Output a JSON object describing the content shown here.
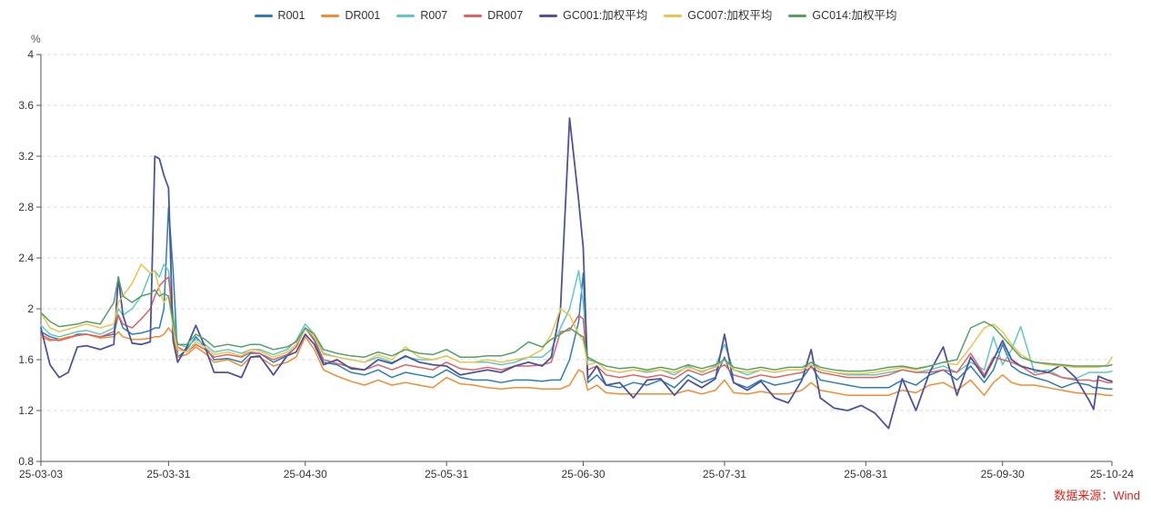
{
  "chart": {
    "unit": "%",
    "source_note": "数据来源：Wind",
    "colors": {
      "source_note": "#d9261c",
      "axis": "#555555",
      "grid": "#dcdcdc",
      "tick_label": "#333333"
    }
  },
  "chart_data": {
    "type": "line",
    "title": "",
    "xlabel": "",
    "ylabel": "%",
    "ylim": [
      0.8,
      4.0
    ],
    "y_ticks": [
      0.8,
      1.2,
      1.6,
      2.0,
      2.4,
      2.8,
      3.2,
      3.6,
      4.0
    ],
    "y_tick_labels": [
      "0.8",
      "1.2",
      "1.6",
      "2",
      "2.4",
      "2.8",
      "3.2",
      "3.6",
      "4"
    ],
    "grid": "dashed-horizontal",
    "legend_position": "top-center",
    "x_unit": "days-since-2025-03-03",
    "x_range_days": 235,
    "x_ticks": [
      {
        "day": 0,
        "label": "25-03-03"
      },
      {
        "day": 28,
        "label": "25-03-31"
      },
      {
        "day": 58,
        "label": "25-04-30"
      },
      {
        "day": 89,
        "label": "25-05-31"
      },
      {
        "day": 119,
        "label": "25-06-30"
      },
      {
        "day": 150,
        "label": "25-07-31"
      },
      {
        "day": 181,
        "label": "25-08-31"
      },
      {
        "day": 211,
        "label": "25-09-30"
      },
      {
        "day": 235,
        "label": "25-10-24"
      }
    ],
    "days": [
      0,
      2,
      4,
      6,
      8,
      10,
      13,
      16,
      17,
      18,
      20,
      22,
      24,
      25,
      26,
      27,
      28,
      29,
      30,
      32,
      34,
      36,
      38,
      41,
      44,
      46,
      48,
      51,
      54,
      56,
      58,
      60,
      62,
      65,
      68,
      71,
      74,
      77,
      80,
      83,
      86,
      89,
      92,
      95,
      98,
      101,
      104,
      107,
      110,
      112,
      114,
      116,
      118,
      119,
      120,
      122,
      124,
      127,
      130,
      133,
      136,
      139,
      142,
      145,
      148,
      150,
      152,
      155,
      158,
      161,
      164,
      167,
      169,
      171,
      174,
      177,
      180,
      183,
      186,
      189,
      192,
      195,
      198,
      201,
      204,
      207,
      209,
      211,
      213,
      215,
      218,
      221,
      224,
      227,
      230,
      231,
      232,
      234,
      235
    ],
    "series": [
      {
        "name": "R001",
        "color": "#2a7db5",
        "width": 1.5,
        "values": [
          1.82,
          1.78,
          1.76,
          1.77,
          1.8,
          1.8,
          1.78,
          1.8,
          1.95,
          1.85,
          1.8,
          1.81,
          1.83,
          1.85,
          1.85,
          2.0,
          2.8,
          2.3,
          1.62,
          1.68,
          1.78,
          1.7,
          1.6,
          1.61,
          1.58,
          1.65,
          1.65,
          1.58,
          1.63,
          1.7,
          1.85,
          1.75,
          1.58,
          1.56,
          1.5,
          1.48,
          1.52,
          1.46,
          1.5,
          1.48,
          1.46,
          1.52,
          1.46,
          1.44,
          1.44,
          1.42,
          1.44,
          1.44,
          1.43,
          1.44,
          1.44,
          1.6,
          1.9,
          2.28,
          1.42,
          1.48,
          1.4,
          1.38,
          1.42,
          1.4,
          1.44,
          1.38,
          1.48,
          1.42,
          1.46,
          1.62,
          1.42,
          1.38,
          1.44,
          1.4,
          1.42,
          1.45,
          1.55,
          1.44,
          1.42,
          1.4,
          1.38,
          1.38,
          1.38,
          1.44,
          1.4,
          1.48,
          1.52,
          1.44,
          1.55,
          1.42,
          1.52,
          1.72,
          1.55,
          1.5,
          1.46,
          1.43,
          1.38,
          1.42,
          1.4,
          1.38,
          1.38,
          1.37,
          1.37
        ]
      },
      {
        "name": "DR001",
        "color": "#f58b2e",
        "width": 1.5,
        "values": [
          1.78,
          1.75,
          1.76,
          1.78,
          1.79,
          1.8,
          1.77,
          1.78,
          1.82,
          1.78,
          1.76,
          1.76,
          1.77,
          1.78,
          1.78,
          1.8,
          1.85,
          1.8,
          1.62,
          1.64,
          1.7,
          1.65,
          1.58,
          1.6,
          1.55,
          1.62,
          1.62,
          1.55,
          1.58,
          1.62,
          1.78,
          1.68,
          1.52,
          1.47,
          1.43,
          1.4,
          1.44,
          1.4,
          1.42,
          1.4,
          1.38,
          1.46,
          1.41,
          1.4,
          1.38,
          1.37,
          1.38,
          1.38,
          1.37,
          1.37,
          1.37,
          1.4,
          1.52,
          1.5,
          1.36,
          1.4,
          1.34,
          1.33,
          1.33,
          1.33,
          1.33,
          1.33,
          1.36,
          1.33,
          1.36,
          1.44,
          1.34,
          1.33,
          1.35,
          1.33,
          1.33,
          1.36,
          1.42,
          1.36,
          1.34,
          1.32,
          1.32,
          1.32,
          1.32,
          1.36,
          1.34,
          1.4,
          1.42,
          1.36,
          1.44,
          1.32,
          1.42,
          1.48,
          1.42,
          1.4,
          1.4,
          1.38,
          1.36,
          1.34,
          1.33,
          1.33,
          1.33,
          1.32,
          1.32
        ]
      },
      {
        "name": "R007",
        "color": "#5fc8c3",
        "width": 1.5,
        "values": [
          1.87,
          1.8,
          1.78,
          1.8,
          1.82,
          1.83,
          1.8,
          1.85,
          2.0,
          1.95,
          2.0,
          2.1,
          2.28,
          2.3,
          2.25,
          2.35,
          2.3,
          1.95,
          1.72,
          1.7,
          1.76,
          1.72,
          1.66,
          1.68,
          1.65,
          1.68,
          1.68,
          1.64,
          1.68,
          1.75,
          1.88,
          1.8,
          1.65,
          1.62,
          1.6,
          1.58,
          1.62,
          1.58,
          1.62,
          1.6,
          1.6,
          1.63,
          1.58,
          1.58,
          1.58,
          1.56,
          1.58,
          1.62,
          1.62,
          1.68,
          1.85,
          2.0,
          2.3,
          2.05,
          1.6,
          1.58,
          1.52,
          1.5,
          1.52,
          1.5,
          1.52,
          1.48,
          1.55,
          1.5,
          1.55,
          1.72,
          1.52,
          1.48,
          1.52,
          1.5,
          1.52,
          1.52,
          1.58,
          1.52,
          1.5,
          1.48,
          1.48,
          1.48,
          1.5,
          1.52,
          1.5,
          1.52,
          1.55,
          1.5,
          1.58,
          1.52,
          1.78,
          1.56,
          1.68,
          1.86,
          1.5,
          1.52,
          1.46,
          1.45,
          1.5,
          1.5,
          1.5,
          1.5,
          1.51
        ]
      },
      {
        "name": "DR007",
        "color": "#e06160",
        "width": 1.5,
        "values": [
          1.8,
          1.76,
          1.75,
          1.77,
          1.79,
          1.8,
          1.78,
          1.82,
          1.95,
          1.88,
          1.85,
          1.92,
          2.0,
          2.1,
          2.18,
          2.22,
          2.25,
          1.9,
          1.7,
          1.66,
          1.72,
          1.68,
          1.62,
          1.64,
          1.62,
          1.66,
          1.65,
          1.6,
          1.64,
          1.7,
          1.85,
          1.76,
          1.6,
          1.57,
          1.54,
          1.52,
          1.56,
          1.52,
          1.56,
          1.54,
          1.52,
          1.58,
          1.53,
          1.52,
          1.54,
          1.52,
          1.55,
          1.55,
          1.56,
          1.58,
          1.82,
          1.83,
          1.95,
          1.92,
          1.52,
          1.55,
          1.48,
          1.46,
          1.48,
          1.46,
          1.48,
          1.45,
          1.52,
          1.48,
          1.52,
          1.56,
          1.48,
          1.45,
          1.48,
          1.46,
          1.48,
          1.5,
          1.54,
          1.5,
          1.48,
          1.46,
          1.46,
          1.46,
          1.48,
          1.52,
          1.5,
          1.5,
          1.52,
          1.5,
          1.65,
          1.48,
          1.62,
          1.6,
          1.58,
          1.55,
          1.48,
          1.5,
          1.46,
          1.44,
          1.44,
          1.43,
          1.44,
          1.42,
          1.42
        ]
      },
      {
        "name": "GC001:加权平均",
        "color": "#4b549d",
        "width": 1.8,
        "values": [
          1.85,
          1.56,
          1.46,
          1.5,
          1.7,
          1.71,
          1.68,
          1.72,
          2.25,
          1.95,
          1.73,
          1.72,
          1.74,
          3.2,
          3.18,
          3.05,
          2.95,
          1.75,
          1.58,
          1.7,
          1.87,
          1.7,
          1.5,
          1.5,
          1.46,
          1.62,
          1.63,
          1.48,
          1.63,
          1.66,
          1.8,
          1.72,
          1.56,
          1.6,
          1.53,
          1.52,
          1.6,
          1.57,
          1.63,
          1.58,
          1.56,
          1.55,
          1.48,
          1.5,
          1.52,
          1.5,
          1.55,
          1.58,
          1.55,
          1.62,
          2.0,
          3.5,
          2.85,
          2.48,
          1.45,
          1.55,
          1.4,
          1.42,
          1.3,
          1.44,
          1.45,
          1.32,
          1.44,
          1.38,
          1.45,
          1.8,
          1.42,
          1.36,
          1.43,
          1.3,
          1.26,
          1.44,
          1.68,
          1.3,
          1.22,
          1.2,
          1.24,
          1.18,
          1.06,
          1.45,
          1.2,
          1.5,
          1.7,
          1.32,
          1.62,
          1.46,
          1.6,
          1.75,
          1.6,
          1.55,
          1.52,
          1.5,
          1.56,
          1.46,
          1.28,
          1.21,
          1.47,
          1.44,
          1.43
        ]
      },
      {
        "name": "GC007:加权平均",
        "color": "#e7c54f",
        "width": 1.5,
        "values": [
          1.97,
          1.85,
          1.82,
          1.84,
          1.86,
          1.88,
          1.85,
          1.88,
          2.05,
          2.1,
          2.2,
          2.35,
          2.28,
          2.3,
          2.15,
          2.05,
          2.1,
          1.85,
          1.68,
          1.66,
          1.74,
          1.7,
          1.64,
          1.66,
          1.63,
          1.68,
          1.67,
          1.62,
          1.66,
          1.72,
          1.85,
          1.78,
          1.64,
          1.62,
          1.6,
          1.58,
          1.64,
          1.6,
          1.7,
          1.62,
          1.6,
          1.63,
          1.58,
          1.58,
          1.6,
          1.58,
          1.6,
          1.62,
          1.68,
          1.8,
          2.0,
          1.95,
          1.8,
          1.75,
          1.56,
          1.58,
          1.52,
          1.5,
          1.52,
          1.51,
          1.52,
          1.5,
          1.54,
          1.51,
          1.54,
          1.6,
          1.52,
          1.5,
          1.52,
          1.5,
          1.52,
          1.52,
          1.56,
          1.52,
          1.5,
          1.49,
          1.49,
          1.5,
          1.52,
          1.54,
          1.52,
          1.55,
          1.58,
          1.56,
          1.7,
          1.85,
          1.88,
          1.82,
          1.72,
          1.64,
          1.58,
          1.56,
          1.55,
          1.54,
          1.54,
          1.54,
          1.54,
          1.56,
          1.62
        ]
      },
      {
        "name": "GC014:加权平均",
        "color": "#56a065",
        "width": 1.5,
        "values": [
          1.97,
          1.9,
          1.86,
          1.87,
          1.88,
          1.9,
          1.88,
          2.05,
          2.25,
          2.1,
          2.05,
          2.1,
          2.12,
          2.15,
          2.1,
          2.12,
          2.1,
          1.9,
          1.72,
          1.72,
          1.8,
          1.76,
          1.7,
          1.72,
          1.7,
          1.72,
          1.72,
          1.68,
          1.7,
          1.74,
          1.85,
          1.8,
          1.68,
          1.65,
          1.63,
          1.62,
          1.66,
          1.63,
          1.68,
          1.65,
          1.64,
          1.68,
          1.62,
          1.62,
          1.63,
          1.63,
          1.66,
          1.74,
          1.7,
          1.76,
          1.8,
          1.85,
          1.8,
          1.78,
          1.62,
          1.58,
          1.55,
          1.53,
          1.54,
          1.52,
          1.54,
          1.52,
          1.56,
          1.53,
          1.56,
          1.6,
          1.54,
          1.52,
          1.54,
          1.52,
          1.54,
          1.54,
          1.58,
          1.54,
          1.52,
          1.51,
          1.51,
          1.52,
          1.54,
          1.55,
          1.53,
          1.55,
          1.58,
          1.6,
          1.85,
          1.9,
          1.86,
          1.78,
          1.7,
          1.62,
          1.58,
          1.57,
          1.56,
          1.55,
          1.55,
          1.55,
          1.55,
          1.55,
          1.56
        ]
      }
    ]
  }
}
